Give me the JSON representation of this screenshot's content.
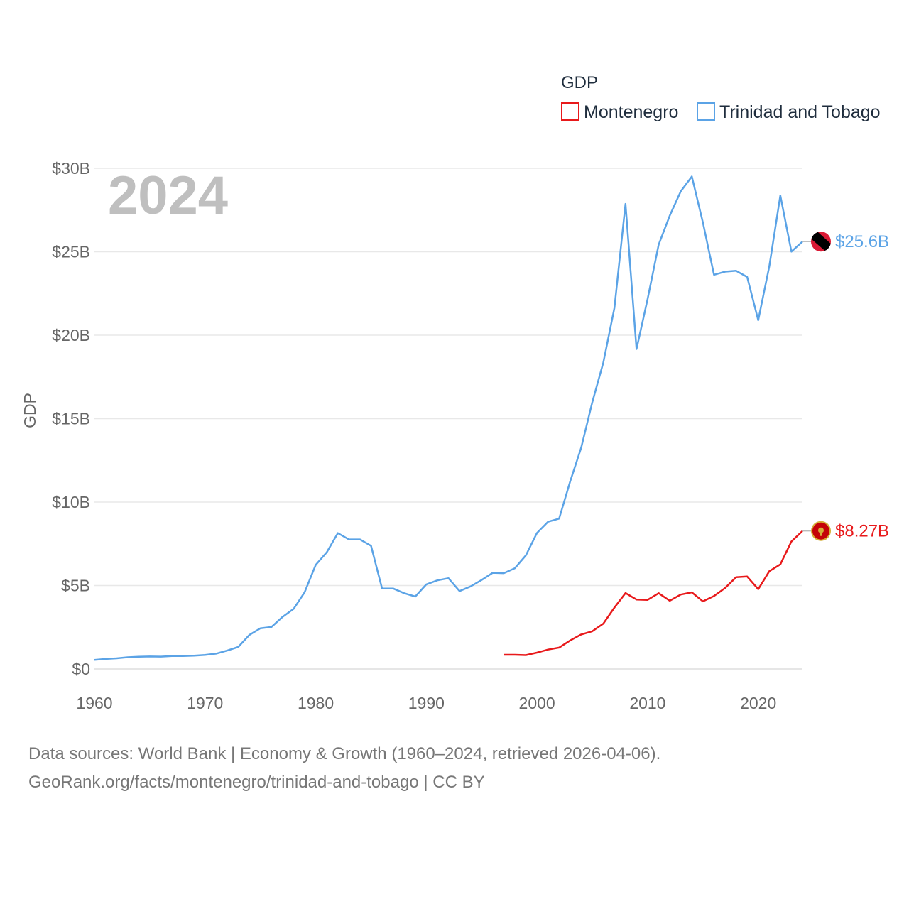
{
  "chart_data": {
    "type": "line",
    "title": "GDP",
    "ylabel": "GDP",
    "xlabel": "",
    "year_label": "2024",
    "xlim": [
      1960,
      2024
    ],
    "ylim": [
      0,
      30
    ],
    "x_ticks": [
      1960,
      1970,
      1980,
      1990,
      2000,
      2010,
      2020
    ],
    "y_ticks": [
      0,
      5,
      10,
      15,
      20,
      25,
      30
    ],
    "y_tick_labels": [
      "$0",
      "$5B",
      "$10B",
      "$15B",
      "$20B",
      "$25B",
      "$30B"
    ],
    "legend_title": "GDP",
    "legend_position": "top-right",
    "series": [
      {
        "name": "Montenegro",
        "color": "#e8191b",
        "end_label": "$8.27B",
        "flag_icon": "montenegro-flag-icon",
        "x": [
          1997,
          1998,
          1999,
          2000,
          2001,
          2002,
          2003,
          2004,
          2005,
          2006,
          2007,
          2008,
          2009,
          2010,
          2011,
          2012,
          2013,
          2014,
          2015,
          2016,
          2017,
          2018,
          2019,
          2020,
          2021,
          2022,
          2023,
          2024
        ],
        "values": [
          0.85,
          0.85,
          0.83,
          0.98,
          1.16,
          1.28,
          1.71,
          2.07,
          2.26,
          2.72,
          3.68,
          4.55,
          4.16,
          4.14,
          4.54,
          4.09,
          4.46,
          4.59,
          4.05,
          4.37,
          4.85,
          5.5,
          5.54,
          4.78,
          5.86,
          6.27,
          7.64,
          8.27
        ]
      },
      {
        "name": "Trinidad and Tobago",
        "color": "#5ba3e6",
        "end_label": "$25.6B",
        "flag_icon": "trinidad-and-tobago-flag-icon",
        "x": [
          1960,
          1961,
          1962,
          1963,
          1964,
          1965,
          1966,
          1967,
          1968,
          1969,
          1970,
          1971,
          1972,
          1973,
          1974,
          1975,
          1976,
          1977,
          1978,
          1979,
          1980,
          1981,
          1982,
          1983,
          1984,
          1985,
          1986,
          1987,
          1988,
          1989,
          1990,
          1991,
          1992,
          1993,
          1994,
          1995,
          1996,
          1997,
          1998,
          1999,
          2000,
          2001,
          2002,
          2003,
          2004,
          2005,
          2006,
          2007,
          2008,
          2009,
          2010,
          2011,
          2012,
          2013,
          2014,
          2015,
          2016,
          2017,
          2018,
          2019,
          2020,
          2021,
          2022,
          2023,
          2024
        ],
        "values": [
          0.54,
          0.6,
          0.64,
          0.7,
          0.73,
          0.75,
          0.74,
          0.78,
          0.78,
          0.8,
          0.84,
          0.92,
          1.1,
          1.32,
          2.04,
          2.44,
          2.52,
          3.12,
          3.6,
          4.6,
          6.24,
          6.99,
          8.14,
          7.76,
          7.76,
          7.38,
          4.82,
          4.82,
          4.54,
          4.34,
          5.07,
          5.31,
          5.44,
          4.67,
          4.95,
          5.33,
          5.76,
          5.74,
          6.04,
          6.81,
          8.15,
          8.82,
          9.01,
          11.24,
          13.26,
          15.98,
          18.37,
          21.64,
          27.87,
          19.17,
          22.16,
          25.43,
          27.16,
          28.62,
          29.51,
          26.75,
          23.62,
          23.81,
          23.86,
          23.49,
          20.9,
          24.13,
          28.37,
          25.01,
          25.61
        ]
      }
    ]
  },
  "footer": {
    "line1": "Data sources: World Bank | Economy & Growth (1960–2024, retrieved 2026-04-06).",
    "line2": "GeoRank.org/facts/montenegro/trinidad-and-tobago | CC BY"
  }
}
